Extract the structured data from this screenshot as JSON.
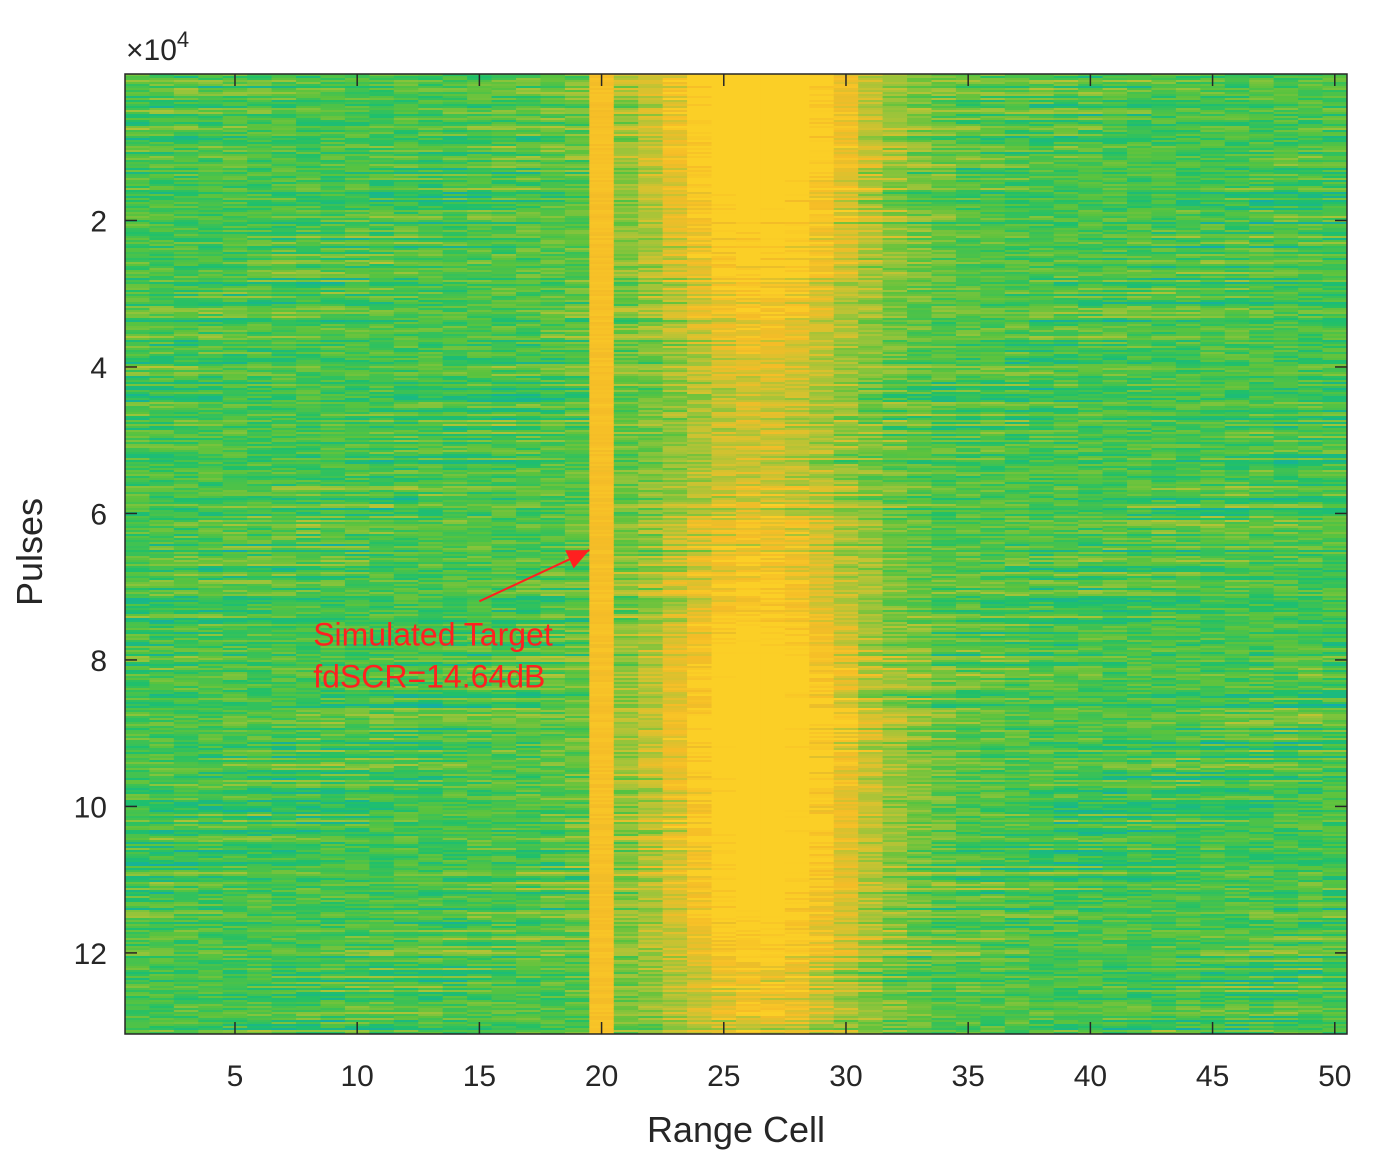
{
  "chart_data": {
    "type": "heatmap",
    "title": "",
    "xlabel": "Range Cell",
    "ylabel": "Pulses",
    "xlim": [
      0.5,
      50.5
    ],
    "ylim": [
      0,
      131072
    ],
    "y_reversed": true,
    "y_exponent_label": "×10",
    "y_exponent_power": "4",
    "x_ticks": [
      5,
      10,
      15,
      20,
      25,
      30,
      35,
      40,
      45,
      50
    ],
    "x_tick_labels": [
      "5",
      "10",
      "15",
      "20",
      "25",
      "30",
      "35",
      "40",
      "45",
      "50"
    ],
    "y_ticks": [
      20000,
      40000,
      60000,
      80000,
      100000,
      120000
    ],
    "y_tick_labels": [
      "2",
      "4",
      "6",
      "8",
      "10",
      "12"
    ],
    "colormap": [
      "#0f9bd6",
      "#15b29a",
      "#20c06a",
      "#5bc33e",
      "#9cc43a",
      "#d6c22f",
      "#f5bc27",
      "#fcd226"
    ],
    "annotations": [
      {
        "lines": [
          "Simulated Target",
          "fdSCR=14.64dB"
        ],
        "text_x": 8.2,
        "text_y": 78000,
        "arrow_from": [
          15,
          72000
        ],
        "arrow_to": [
          19.5,
          65000
        ],
        "color": "#ff2020"
      }
    ],
    "grid": false
  }
}
